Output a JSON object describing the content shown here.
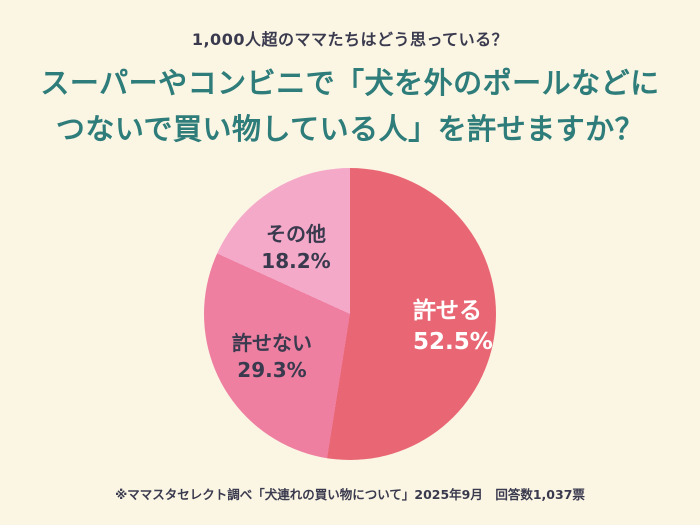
{
  "page": {
    "background_color": "#FBF5E4",
    "eyebrow": "1,000人超のママたちはどう思っている？",
    "title_line1": "スーパーやコンビニで「犬を外のポールなどに",
    "title_line2": "つないで買い物している人」を許せますか？",
    "title_color": "#2E7D7A",
    "footnote": "※ママスタセレクト調べ「犬連れの買い物について」2025年9月　回答数1,037票"
  },
  "chart_data": {
    "type": "pie",
    "title": "スーパーやコンビニで「犬を外のポールなどにつないで買い物している人」を許せますか？",
    "start_angle_deg": 0,
    "direction": "clockwise",
    "legend_position": "none",
    "labels_inside": true,
    "slices": [
      {
        "label": "許せる",
        "value": 52.5,
        "display": "52.5%",
        "color": "#E96774",
        "text_color": "#FFFFFF"
      },
      {
        "label": "許せない",
        "value": 29.3,
        "display": "29.3%",
        "color": "#EE7FA1",
        "text_color": "#3A3A4E"
      },
      {
        "label": "その他",
        "value": 18.2,
        "display": "18.2%",
        "color": "#F5A9C9",
        "text_color": "#3A3A4E"
      }
    ]
  }
}
